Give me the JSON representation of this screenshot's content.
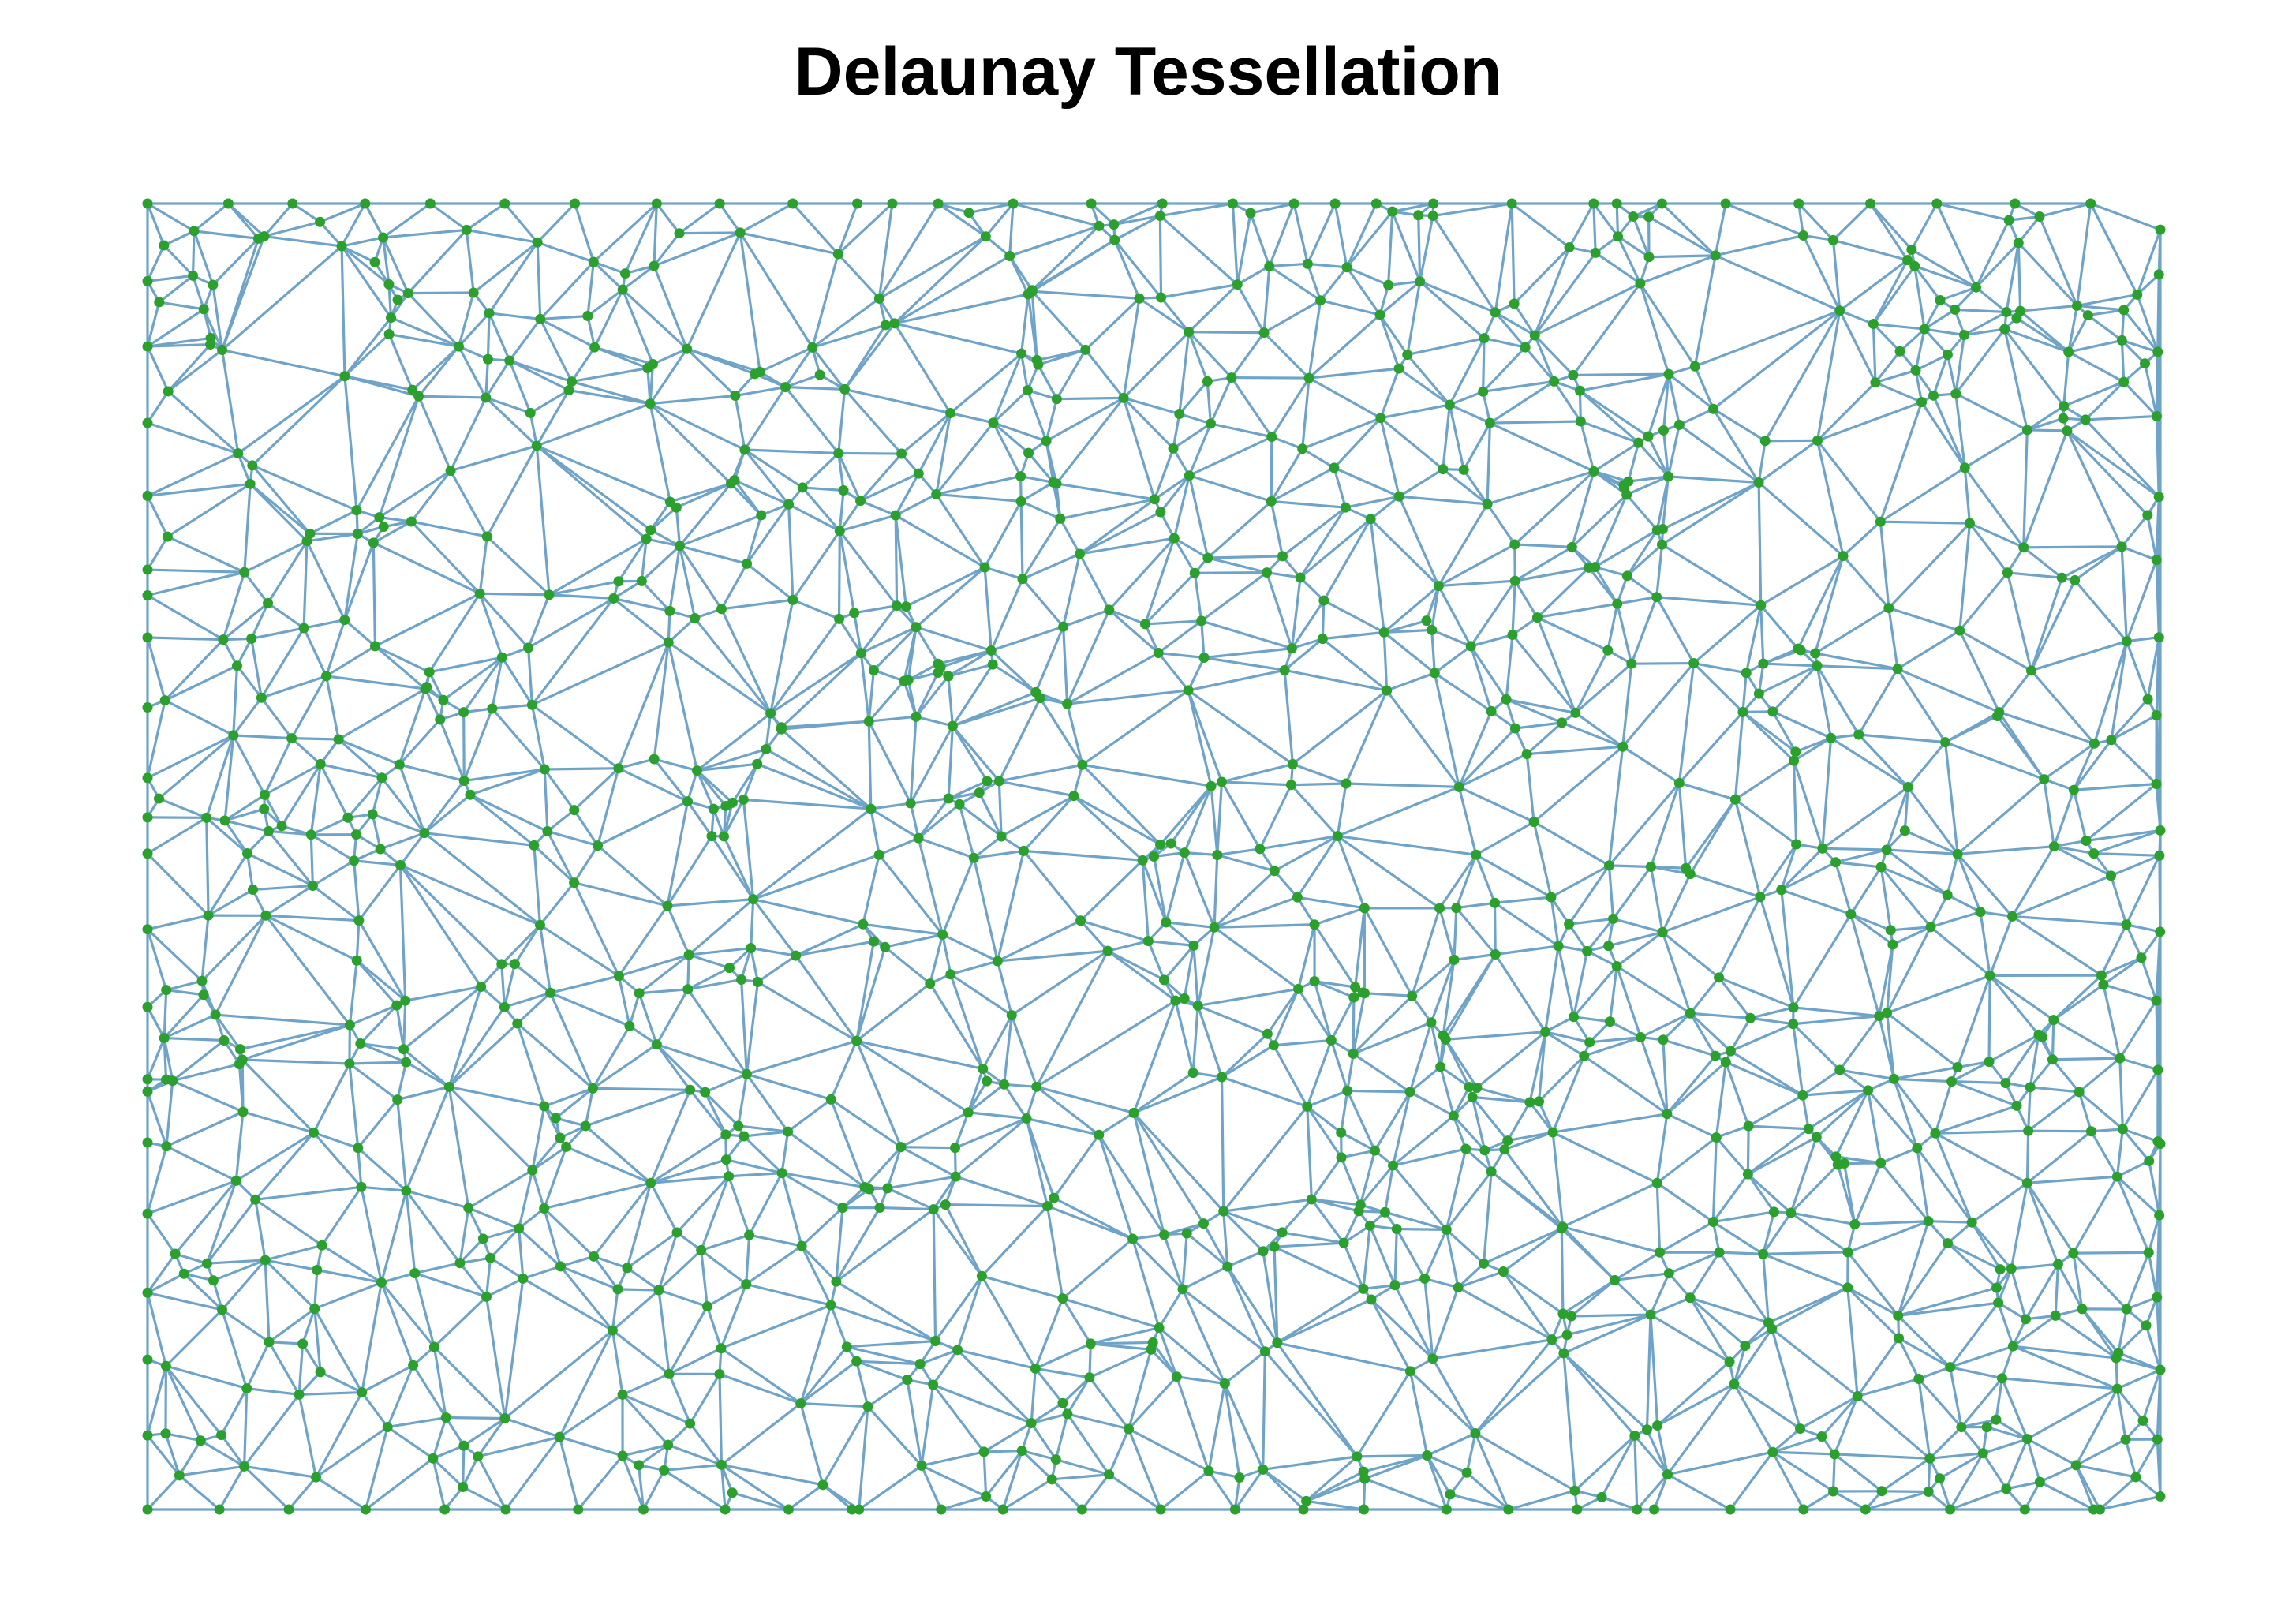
{
  "chart_data": {
    "type": "scatter",
    "title": "Delaunay Tessellation",
    "xlabel": "",
    "ylabel": "",
    "xlim": [
      0,
      1
    ],
    "ylim": [
      0,
      1
    ],
    "axes_visible": false,
    "grid": false,
    "legend": "none",
    "point_color": "#2ca02c",
    "edge_color": "#6fa3c8",
    "points": [
      [
        0.0,
        1.0
      ],
      [
        0.37,
        1.0
      ],
      [
        0.59,
        1.0
      ],
      [
        0.73,
        1.0
      ],
      [
        0.94,
        0.99
      ],
      [
        1.0,
        0.98
      ],
      [
        0.0,
        0.0
      ],
      [
        0.35,
        0.0
      ],
      [
        0.74,
        0.0
      ],
      [
        0.97,
        0.0
      ],
      [
        1.0,
        0.01
      ],
      [
        0.0,
        0.7
      ],
      [
        0.0,
        0.53
      ],
      [
        0.0,
        0.32
      ],
      [
        1.0,
        0.52
      ],
      [
        1.0,
        0.28
      ],
      [
        0.5,
        0.5
      ],
      [
        0.25,
        0.75
      ],
      [
        0.75,
        0.25
      ],
      [
        0.25,
        0.25
      ],
      [
        0.75,
        0.75
      ],
      [
        0.12,
        0.9
      ],
      [
        0.88,
        0.1
      ],
      [
        0.6,
        0.4
      ],
      [
        0.4,
        0.6
      ]
    ]
  }
}
